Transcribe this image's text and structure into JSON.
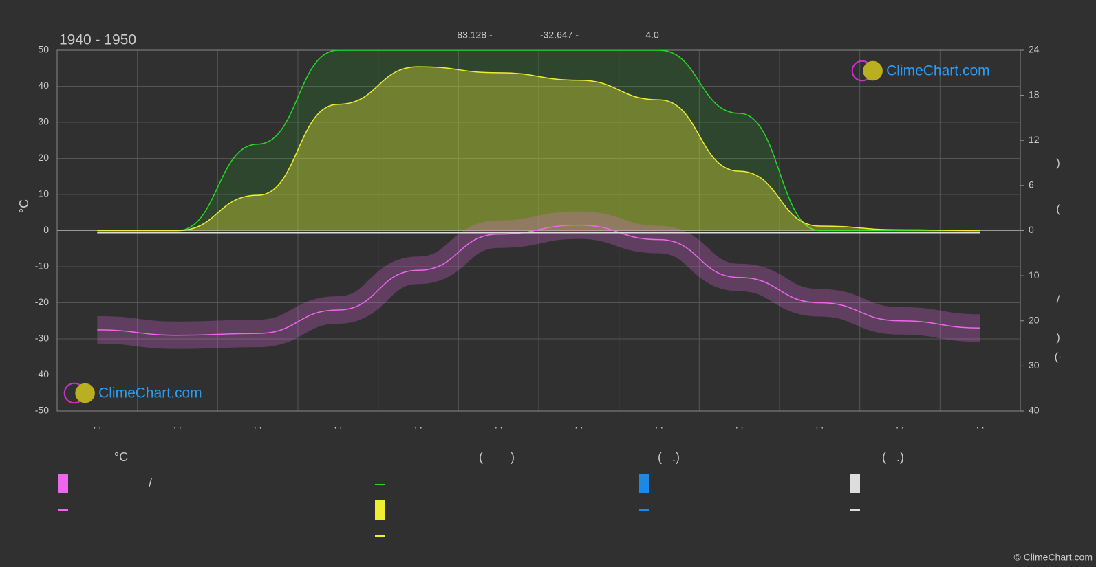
{
  "chart_data": {
    "type": "line",
    "title": "1940 - 1950",
    "annotations": [
      "83.128 -",
      "-32.647 -",
      "4.0"
    ],
    "ylabel": "°C",
    "y2label_fragments": [
      ")",
      "(",
      "/",
      ")",
      "(·"
    ],
    "categories": [
      ". .",
      ". .",
      ". .",
      ". .",
      ". .",
      ". .",
      ". .",
      ". .",
      ". .",
      ". .",
      ". .",
      ". ."
    ],
    "ylim": [
      -50,
      50
    ],
    "yticks": [
      -50,
      -40,
      -30,
      -20,
      -10,
      0,
      10,
      20,
      30,
      40,
      50
    ],
    "y2lim": [
      0,
      24
    ],
    "y2ticks": [
      0,
      6,
      12,
      18,
      24
    ],
    "y3lim": [
      0,
      40
    ],
    "y3ticks": [
      10,
      20,
      30,
      40
    ],
    "grid": true,
    "series": [
      {
        "color": "#22dd22",
        "axis": "y2",
        "values": [
          0,
          0,
          11.5,
          24,
          24,
          24,
          24,
          24,
          15.6,
          0,
          0,
          0
        ]
      },
      {
        "color": "#eeee33",
        "axis": "y2",
        "values": [
          0,
          0,
          4.7,
          16.8,
          21.8,
          21,
          20,
          17.4,
          7.9,
          0.6,
          0.1,
          0
        ]
      },
      {
        "color": "#ee66ee",
        "axis": "y",
        "values": [
          -27.5,
          -29,
          -28.5,
          -22,
          -11,
          -1,
          1.5,
          -2.5,
          -13,
          -20,
          -25,
          -27
        ]
      },
      {
        "color": "#1e88e5",
        "axis": "y3",
        "values": [
          0.4,
          0.4,
          0.4,
          0.4,
          0.4,
          0.4,
          0.4,
          0.4,
          0.4,
          0.4,
          0.4,
          0.4
        ]
      },
      {
        "color": "#dddddd",
        "axis": "y3",
        "values": [
          0.5,
          0.5,
          0.5,
          0.5,
          0.5,
          0.5,
          0.5,
          0.5,
          0.5,
          0.5,
          0.5,
          0.5
        ]
      }
    ],
    "legend": {
      "headers": [
        "°C",
        "(        )",
        "(   .)",
        "(   .)"
      ],
      "labels": [
        "/"
      ]
    },
    "watermark": "ClimeChart.com",
    "copyright": "© ClimeChart.com"
  }
}
